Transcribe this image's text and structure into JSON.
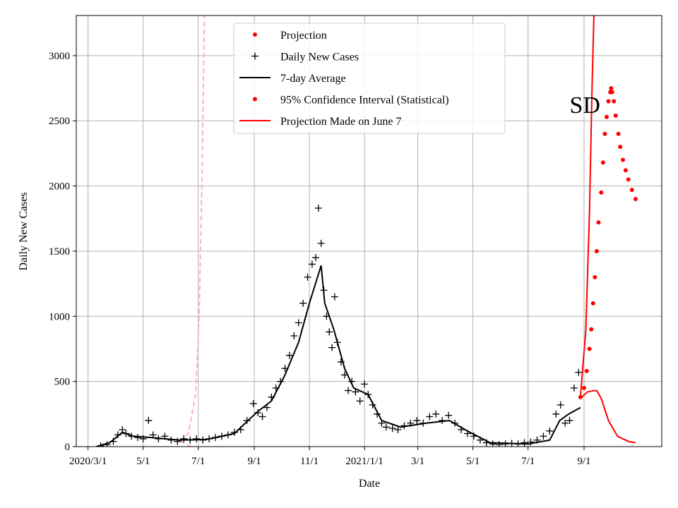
{
  "chart_data": {
    "type": "line",
    "x_label": "Date",
    "y_label": "Daily New Cases",
    "annotation": {
      "text": "SD",
      "x": "2021-09-02",
      "y": 2560
    },
    "xlim": [
      "2020-02-17",
      "2021-11-26"
    ],
    "ylim": [
      0,
      3308
    ],
    "yticks": [
      0,
      500,
      1000,
      1500,
      2000,
      2500,
      3000
    ],
    "xticks": [
      {
        "value": "2020-03-01",
        "label": "2020/3/1"
      },
      {
        "value": "2020-05-01",
        "label": "5/1"
      },
      {
        "value": "2020-07-01",
        "label": "7/1"
      },
      {
        "value": "2020-09-01",
        "label": "9/1"
      },
      {
        "value": "2020-11-01",
        "label": "11/1"
      },
      {
        "value": "2021-01-01",
        "label": "2021/1/1"
      },
      {
        "value": "2021-03-01",
        "label": "3/1"
      },
      {
        "value": "2021-05-01",
        "label": "5/1"
      },
      {
        "value": "2021-07-01",
        "label": "7/1"
      },
      {
        "value": "2021-09-01",
        "label": "9/1"
      }
    ],
    "grid": true,
    "legend_position": "upper center",
    "legend": [
      {
        "label": "Projection",
        "marker": "dot",
        "color": "#ff0000"
      },
      {
        "label": "Daily New Cases",
        "marker": "plus",
        "color": "#000000"
      },
      {
        "label": "7-day Average",
        "marker": "line",
        "color": "#000000"
      },
      {
        "label": "95% Confidence Interval (Statistical)",
        "marker": "dot",
        "color": "#ff0000"
      },
      {
        "label": "Projection Made on June 7",
        "marker": "line",
        "color": "#ff0000"
      }
    ],
    "series": [
      {
        "style": "dashed",
        "color": "#ffb3b3",
        "x": [
          "2020-06-11",
          "2020-06-20",
          "2020-06-28",
          "2020-07-02",
          "2020-07-05",
          "2020-07-08"
        ],
        "values": [
          40,
          100,
          400,
          1000,
          2000,
          3400
        ]
      },
      {
        "style": "dashed",
        "color": "#ffb3b3",
        "x": [
          "2020-06-11",
          "2020-06-17",
          "2020-06-23"
        ],
        "values": [
          40,
          20,
          0
        ]
      },
      {
        "style": "plus",
        "color": "#000000",
        "x": [
          "2020-03-15",
          "2020-03-22",
          "2020-03-29",
          "2020-04-03",
          "2020-04-08",
          "2020-04-12",
          "2020-04-18",
          "2020-04-25",
          "2020-05-01",
          "2020-05-07",
          "2020-05-12",
          "2020-05-18",
          "2020-05-25",
          "2020-06-01",
          "2020-06-08",
          "2020-06-15",
          "2020-06-22",
          "2020-06-29",
          "2020-07-06",
          "2020-07-13",
          "2020-07-20",
          "2020-07-27",
          "2020-08-03",
          "2020-08-10",
          "2020-08-17",
          "2020-08-24",
          "2020-08-31",
          "2020-09-05",
          "2020-09-10",
          "2020-09-15",
          "2020-09-20",
          "2020-09-25",
          "2020-09-30",
          "2020-10-05",
          "2020-10-10",
          "2020-10-15",
          "2020-10-20",
          "2020-10-25",
          "2020-10-30",
          "2020-11-04",
          "2020-11-08",
          "2020-11-11",
          "2020-11-14",
          "2020-11-17",
          "2020-11-20",
          "2020-11-23",
          "2020-11-26",
          "2020-11-29",
          "2020-12-02",
          "2020-12-06",
          "2020-12-10",
          "2020-12-14",
          "2020-12-18",
          "2020-12-22",
          "2020-12-27",
          "2021-01-01",
          "2021-01-05",
          "2021-01-10",
          "2021-01-15",
          "2021-01-20",
          "2021-01-25",
          "2021-02-01",
          "2021-02-07",
          "2021-02-14",
          "2021-02-21",
          "2021-02-28",
          "2021-03-07",
          "2021-03-14",
          "2021-03-21",
          "2021-03-28",
          "2021-04-04",
          "2021-04-11",
          "2021-04-18",
          "2021-04-25",
          "2021-05-02",
          "2021-05-09",
          "2021-05-16",
          "2021-05-23",
          "2021-05-30",
          "2021-06-06",
          "2021-06-13",
          "2021-06-20",
          "2021-06-27",
          "2021-07-04",
          "2021-07-11",
          "2021-07-18",
          "2021-07-25",
          "2021-08-01",
          "2021-08-06",
          "2021-08-11",
          "2021-08-16",
          "2021-08-21",
          "2021-08-26"
        ],
        "values": [
          5,
          15,
          40,
          90,
          130,
          100,
          80,
          70,
          60,
          200,
          90,
          60,
          80,
          50,
          40,
          60,
          50,
          60,
          50,
          60,
          70,
          80,
          90,
          110,
          130,
          200,
          330,
          260,
          230,
          300,
          380,
          450,
          500,
          600,
          700,
          850,
          950,
          1100,
          1300,
          1400,
          1450,
          1830,
          1560,
          1200,
          1000,
          880,
          760,
          1150,
          800,
          650,
          550,
          430,
          500,
          420,
          350,
          480,
          400,
          320,
          250,
          180,
          150,
          140,
          130,
          160,
          180,
          200,
          180,
          230,
          250,
          200,
          240,
          180,
          130,
          100,
          80,
          50,
          30,
          20,
          15,
          20,
          25,
          20,
          30,
          35,
          50,
          80,
          120,
          250,
          320,
          180,
          200,
          450,
          570
        ]
      },
      {
        "style": "line",
        "color": "#000000",
        "x": [
          "2020-03-10",
          "2020-03-25",
          "2020-04-08",
          "2020-04-20",
          "2020-05-10",
          "2020-06-10",
          "2020-07-10",
          "2020-08-10",
          "2020-08-25",
          "2020-09-05",
          "2020-09-20",
          "2020-10-05",
          "2020-10-20",
          "2020-11-01",
          "2020-11-10",
          "2020-11-14",
          "2020-11-18",
          "2020-11-28",
          "2020-12-10",
          "2020-12-20",
          "2021-01-05",
          "2021-01-20",
          "2021-02-10",
          "2021-03-10",
          "2021-04-05",
          "2021-04-25",
          "2021-05-20",
          "2021-07-01",
          "2021-07-25",
          "2021-08-05",
          "2021-08-15",
          "2021-08-28"
        ],
        "values": [
          0,
          30,
          110,
          80,
          70,
          50,
          55,
          100,
          200,
          270,
          350,
          550,
          800,
          1100,
          1300,
          1390,
          1100,
          900,
          600,
          450,
          400,
          200,
          150,
          180,
          200,
          120,
          30,
          20,
          50,
          200,
          250,
          300
        ]
      },
      {
        "style": "dot",
        "color": "#ff0000",
        "x": [
          "2021-08-28",
          "2021-09-01",
          "2021-09-04",
          "2021-09-07",
          "2021-09-09",
          "2021-09-11",
          "2021-09-13",
          "2021-09-15",
          "2021-09-17",
          "2021-09-20",
          "2021-09-22",
          "2021-09-24",
          "2021-09-26",
          "2021-09-28",
          "2021-09-30",
          "2021-10-01",
          "2021-10-02",
          "2021-10-04",
          "2021-10-06",
          "2021-10-09",
          "2021-10-11",
          "2021-10-14",
          "2021-10-17",
          "2021-10-20",
          "2021-10-24",
          "2021-10-28"
        ],
        "values": [
          380,
          450,
          580,
          750,
          900,
          1100,
          1300,
          1500,
          1720,
          1950,
          2180,
          2400,
          2530,
          2650,
          2720,
          2750,
          2720,
          2650,
          2540,
          2400,
          2300,
          2200,
          2120,
          2050,
          1970,
          1900
        ]
      },
      {
        "style": "line",
        "color": "#ff0000",
        "x": [
          "2021-08-28",
          "2021-09-03",
          "2021-09-07",
          "2021-09-10",
          "2021-09-13"
        ],
        "values": [
          380,
          900,
          1800,
          2800,
          3600
        ]
      },
      {
        "style": "line",
        "color": "#ff0000",
        "x": [
          "2021-08-28",
          "2021-09-05",
          "2021-09-12",
          "2021-09-15",
          "2021-09-20",
          "2021-09-28",
          "2021-10-08",
          "2021-10-20",
          "2021-10-28"
        ],
        "values": [
          370,
          420,
          430,
          430,
          370,
          200,
          80,
          40,
          30
        ]
      }
    ]
  }
}
